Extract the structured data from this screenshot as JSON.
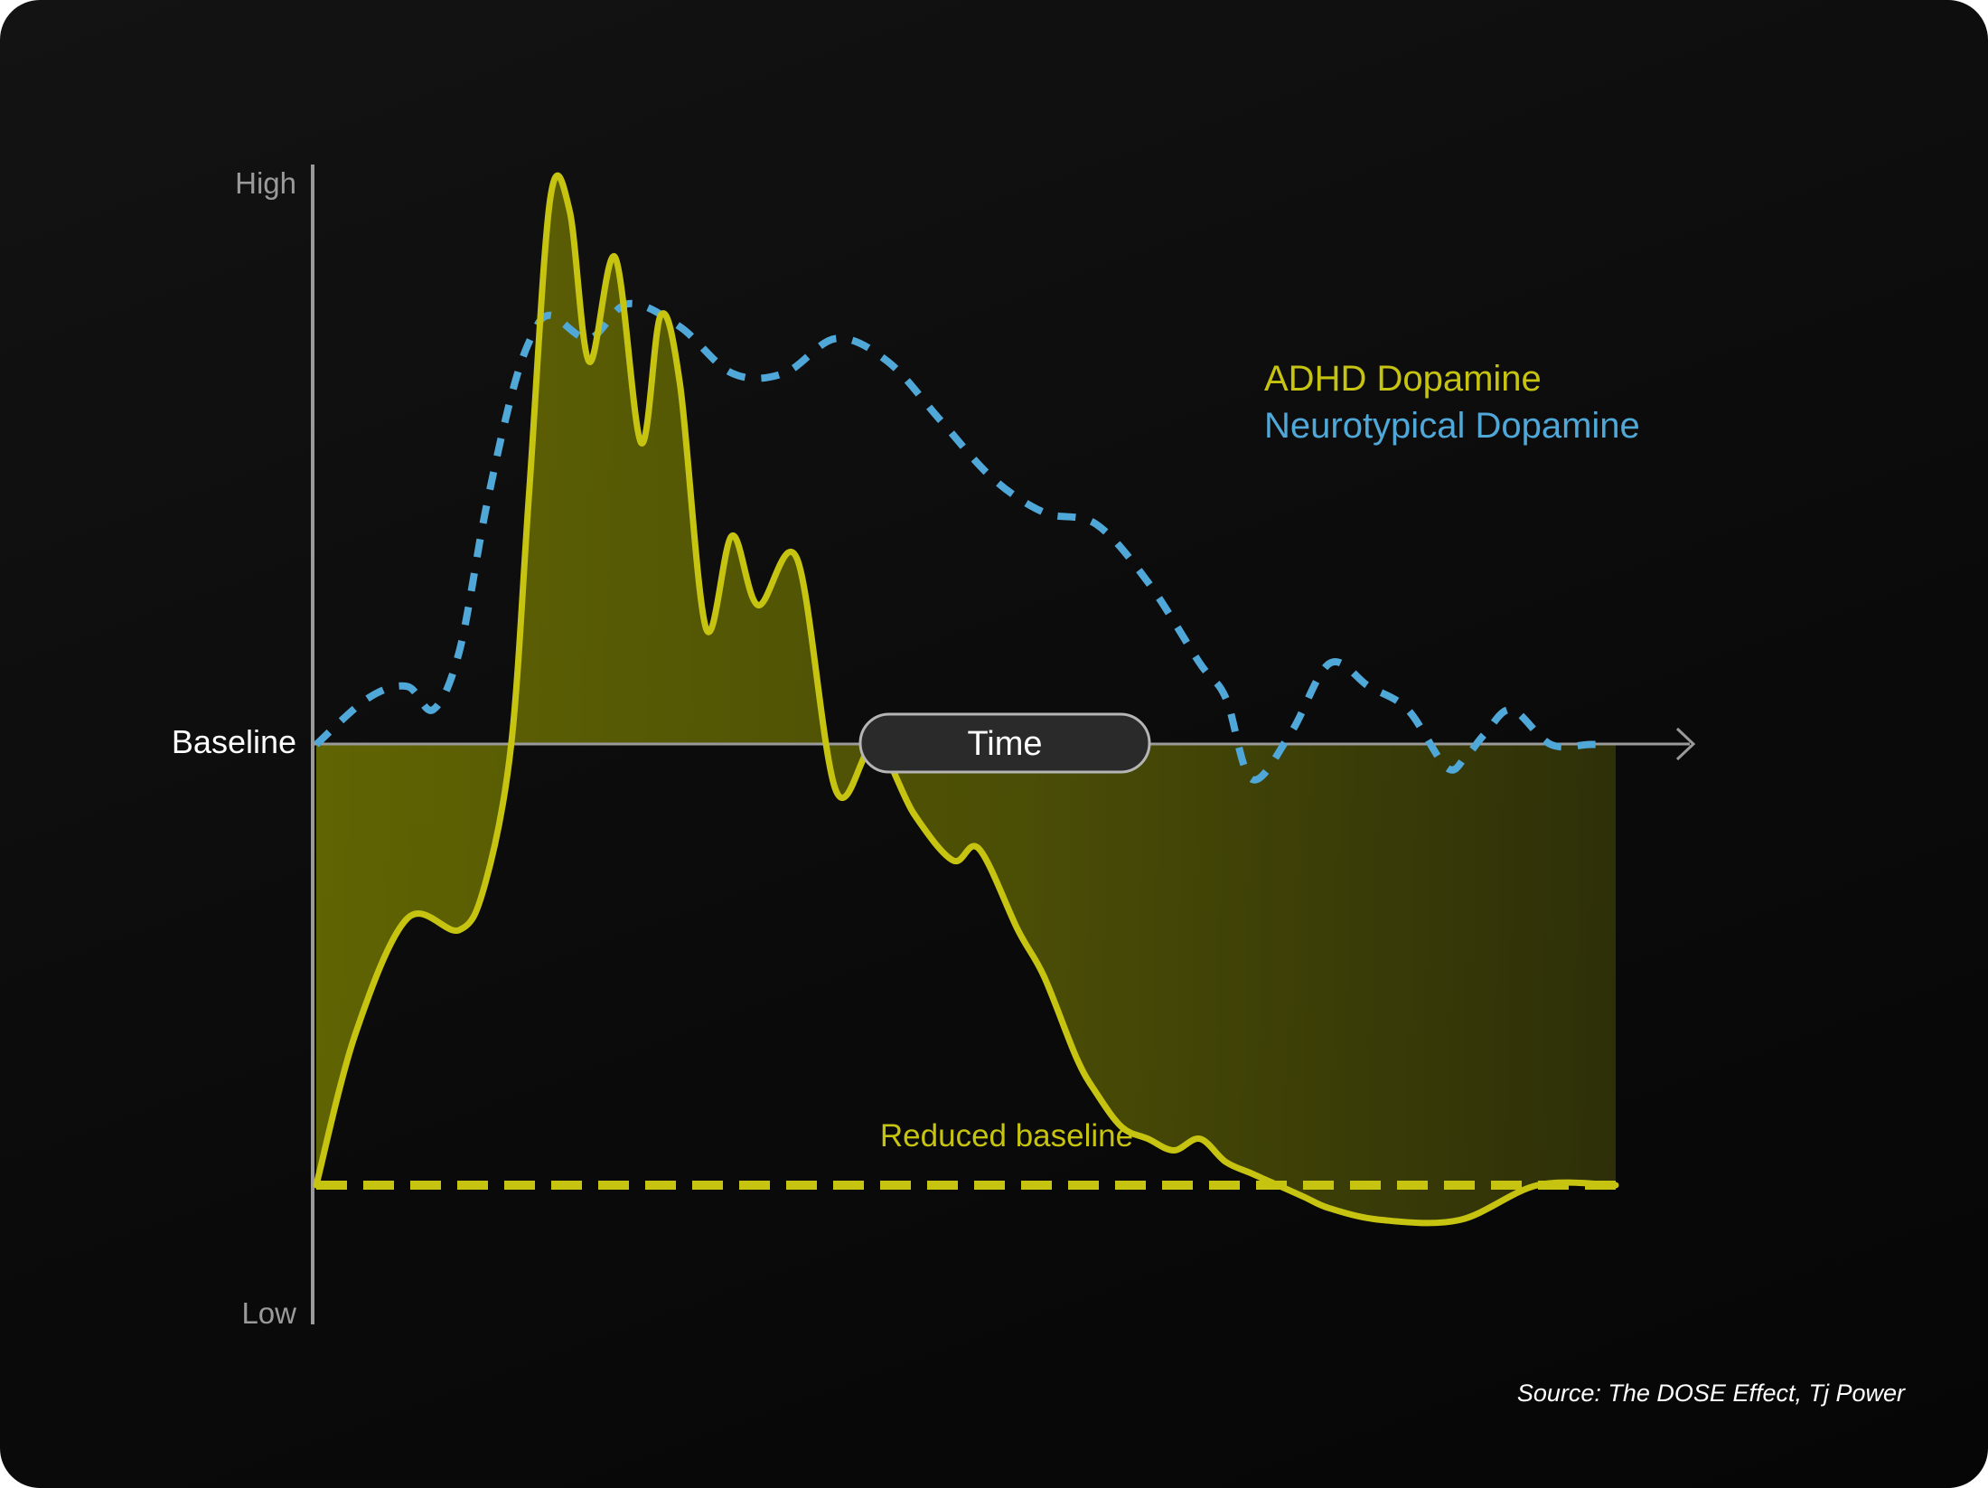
{
  "colors": {
    "adhd": "#c6c410",
    "neurotypical": "#4fa8d8",
    "axis": "#9a9a9a"
  },
  "chart_data": {
    "type": "line",
    "title": "",
    "xlabel": "Time",
    "ylabel": "",
    "ylim": [
      0,
      100
    ],
    "y_ticks": [
      {
        "label": "High",
        "value": 100
      },
      {
        "label": "Baseline",
        "value": 50
      },
      {
        "label": "Low",
        "value": 0
      }
    ],
    "reference_lines": [
      {
        "label": "Reduced baseline",
        "value": 12,
        "style": "dashed"
      }
    ],
    "series": [
      {
        "name": "ADHD Dopamine",
        "style": "solid",
        "fill_to_baseline": true,
        "x": [
          0,
          3,
          7,
          11,
          13,
          15,
          16.4,
          18,
          19.5,
          21,
          23,
          25,
          26.5,
          28,
          30,
          32,
          34,
          37,
          40,
          43,
          46,
          49,
          51,
          54,
          56,
          58.5,
          60,
          62,
          64,
          66,
          68,
          70,
          72,
          74,
          76,
          78,
          82,
          88,
          94,
          100
        ],
        "values": [
          12,
          25,
          35,
          34,
          38,
          50,
          72,
          97,
          96,
          83,
          92,
          76,
          87,
          81,
          60,
          68,
          62,
          66,
          46,
          50,
          44,
          40,
          41,
          34,
          30,
          23,
          20,
          17,
          16,
          15,
          16,
          14,
          13,
          12,
          11,
          10,
          9,
          9,
          12,
          12
        ]
      },
      {
        "name": "Neurotypical Dopamine",
        "style": "dashed",
        "fill_to_baseline": false,
        "x": [
          0,
          4,
          7,
          9,
          11,
          13,
          15,
          16.5,
          18,
          21,
          24,
          28,
          32,
          36,
          40,
          44,
          48,
          52,
          56,
          60,
          64,
          68,
          70,
          72,
          75,
          78,
          81,
          84,
          87,
          88.5,
          90,
          92,
          95,
          98,
          99.5
        ],
        "values": [
          50,
          54,
          55,
          53,
          58,
          70,
          80,
          85,
          87,
          85,
          88,
          86,
          82,
          82,
          85,
          83,
          78,
          73,
          70,
          69,
          64,
          57,
          54,
          47,
          51,
          57,
          55,
          53,
          48,
          49,
          51,
          53,
          50,
          50,
          50
        ]
      }
    ],
    "legend": "top-right",
    "grid": false,
    "source": "Source: The DOSE Effect, Tj Power"
  }
}
